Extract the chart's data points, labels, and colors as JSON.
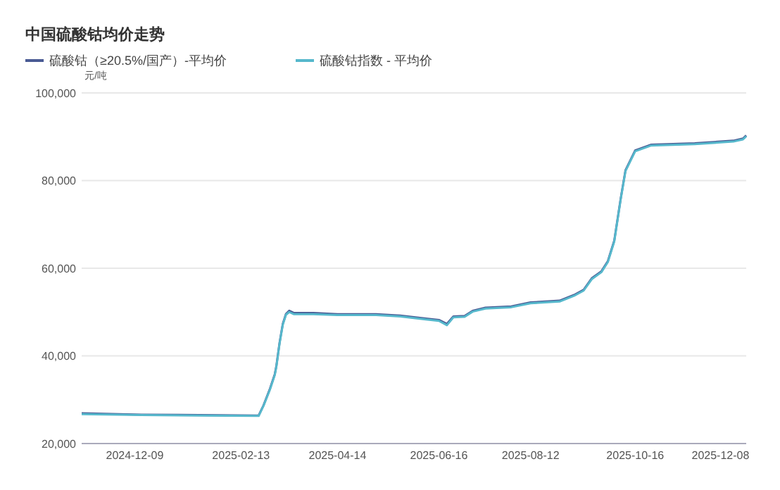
{
  "chart_data": {
    "type": "line",
    "title": "中国硫酸钴均价走势",
    "ylabel": "元/吨",
    "x": [
      "2024-11-06",
      "2024-12-13",
      "2025-01-18",
      "2025-02-24",
      "2025-02-27",
      "2025-03-03",
      "2025-03-06",
      "2025-03-07",
      "2025-03-09",
      "2025-03-11",
      "2025-03-13",
      "2025-03-15",
      "2025-03-18",
      "2025-03-30",
      "2025-04-14",
      "2025-05-08",
      "2025-05-23",
      "2025-06-08",
      "2025-06-16",
      "2025-06-21",
      "2025-06-25",
      "2025-07-02",
      "2025-07-07",
      "2025-07-15",
      "2025-07-31",
      "2025-08-12",
      "2025-08-30",
      "2025-09-08",
      "2025-09-14",
      "2025-09-19",
      "2025-09-25",
      "2025-09-29",
      "2025-10-03",
      "2025-10-07",
      "2025-10-10",
      "2025-10-16",
      "2025-10-26",
      "2025-11-22",
      "2025-12-16",
      "2025-12-22",
      "2025-12-24"
    ],
    "series": [
      {
        "name": "硫酸钴（≥20.5%/国产）-平均价",
        "color": "#4a5b94",
        "values": [
          26900,
          26600,
          26500,
          26400,
          28700,
          32500,
          35800,
          37700,
          43000,
          47300,
          49600,
          50300,
          49800,
          49800,
          49500,
          49500,
          49200,
          48500,
          48200,
          47300,
          49000,
          49100,
          50300,
          51000,
          51300,
          52200,
          52600,
          53900,
          55100,
          57700,
          59300,
          61600,
          66300,
          75900,
          82400,
          86900,
          88200,
          88500,
          89100,
          89600,
          90300
        ]
      },
      {
        "name": "硫酸钴指数 - 平均价",
        "color": "#56b8cc",
        "values": [
          26700,
          26500,
          26400,
          26300,
          28600,
          32300,
          35600,
          37500,
          42800,
          47100,
          49400,
          50000,
          49500,
          49500,
          49300,
          49300,
          49000,
          48300,
          48000,
          47000,
          48800,
          48900,
          50100,
          50800,
          51100,
          52000,
          52400,
          53700,
          54900,
          57500,
          59100,
          61400,
          66100,
          75700,
          82200,
          86700,
          88000,
          88300,
          88900,
          89400,
          90100
        ]
      }
    ],
    "xlim": [
      "2024-11-06",
      "2025-12-24"
    ],
    "xticks": [
      {
        "value": "2024-12-09",
        "label": "2024-12-09"
      },
      {
        "value": "2025-02-13",
        "label": "2025-02-13"
      },
      {
        "value": "2025-04-14",
        "label": "2025-04-14"
      },
      {
        "value": "2025-06-16",
        "label": "2025-06-16"
      },
      {
        "value": "2025-08-12",
        "label": "2025-08-12"
      },
      {
        "value": "2025-10-16",
        "label": "2025-10-16"
      },
      {
        "value": "2025-12-08",
        "label": "2025-12-08"
      }
    ],
    "ylim": [
      20000,
      100000
    ],
    "yticks": [
      {
        "value": 20000,
        "label": "20,000"
      },
      {
        "value": 40000,
        "label": "40,000"
      },
      {
        "value": 60000,
        "label": "60,000"
      },
      {
        "value": 80000,
        "label": "80,000"
      },
      {
        "value": 100000,
        "label": "100,000"
      }
    ],
    "grid": "y",
    "legend": "top left",
    "marker": "none",
    "line_style": "solid"
  }
}
